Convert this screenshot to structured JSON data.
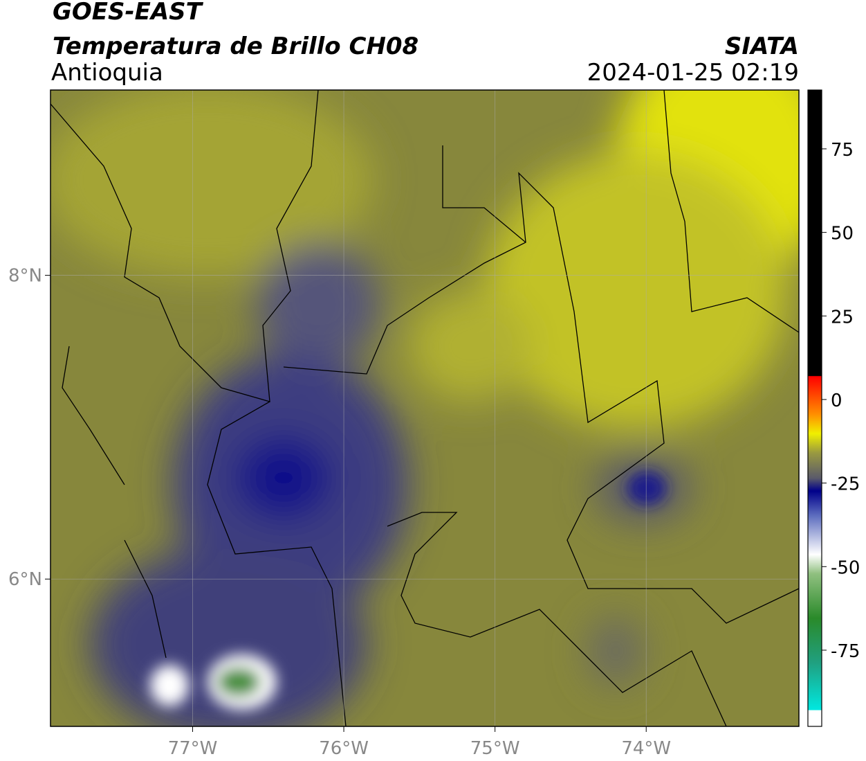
{
  "header": {
    "title": "GOES-EAST",
    "subtitle": "Temperatura de Brillo CH08",
    "region": "Antioquia",
    "source": "SIATA",
    "datetime": "2024-01-25 02:19"
  },
  "map": {
    "xlim": [
      -77.94,
      -72.99
    ],
    "ylim": [
      5.03,
      9.22
    ],
    "xticks": [
      {
        "value": -77,
        "label": "77°W"
      },
      {
        "value": -76,
        "label": "76°W"
      },
      {
        "value": -75,
        "label": "75°W"
      },
      {
        "value": -74,
        "label": "74°W"
      }
    ],
    "yticks": [
      {
        "value": 6,
        "label": "6°N"
      },
      {
        "value": 8,
        "label": "8°N"
      }
    ],
    "grid": true,
    "colorbar": {
      "lim": [
        -97.8,
        92.6
      ],
      "ticks": [
        -75,
        -50,
        -25,
        0,
        25,
        50,
        75
      ]
    }
  }
}
